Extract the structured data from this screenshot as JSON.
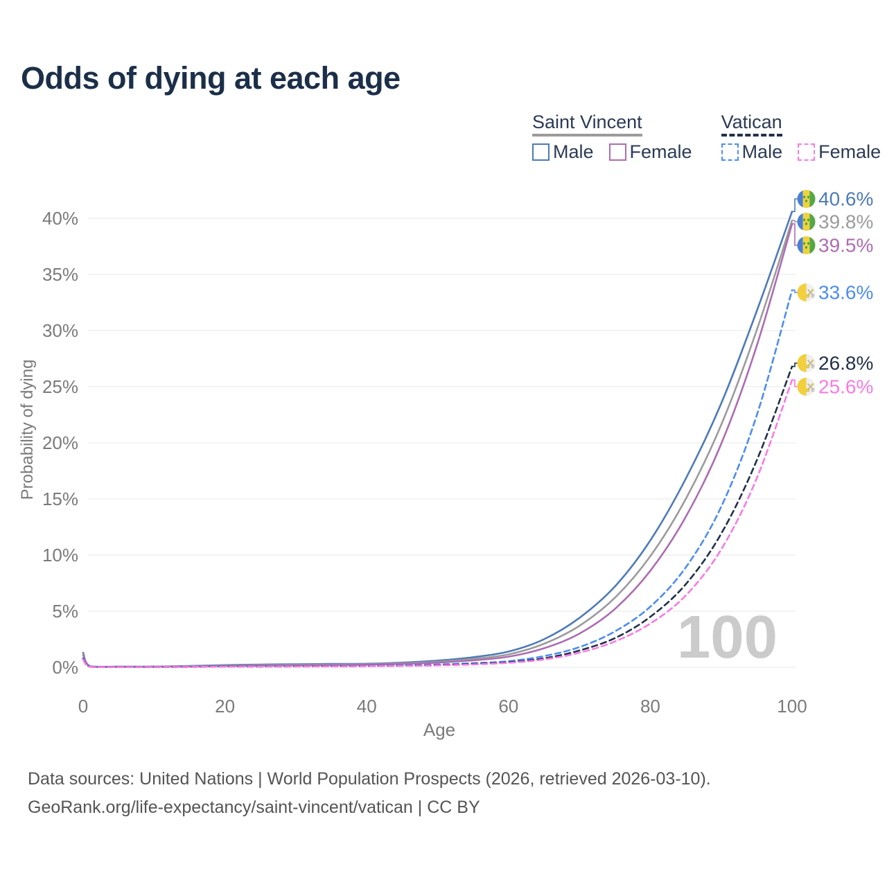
{
  "title": "Odds of dying at each age",
  "watermark_age": "100",
  "legend": {
    "groups": [
      {
        "key": "saint-vincent",
        "label": "Saint Vincent",
        "items": [
          {
            "key": "male",
            "label": "Male"
          },
          {
            "key": "female",
            "label": "Female"
          }
        ]
      },
      {
        "key": "vatican",
        "label": "Vatican",
        "items": [
          {
            "key": "male",
            "label": "Male"
          },
          {
            "key": "female",
            "label": "Female"
          }
        ]
      }
    ]
  },
  "footer": {
    "line1": "Data sources: United Nations | World Population Prospects (2026, retrieved 2026-03-10).",
    "line2": "GeoRank.org/life-expectancy/saint-vincent/vatican | CC BY"
  },
  "colors": {
    "title_text": "#1c2f49",
    "legend_text": "#2b3a55",
    "axis_text": "#7a7a7a",
    "gridline": "#ececec",
    "watermark": "#cbcbcb",
    "footer_text": "#545454",
    "sv_flag_blue": "#4a7fd4",
    "sv_flag_yellow": "#f0d23d",
    "sv_flag_green": "#55a744",
    "sv_flag_diamond": "#3f9e3f",
    "vat_flag_yellow": "#f2cf3c",
    "vat_flag_white": "#efefec",
    "vat_key_gold": "#d8b93a",
    "vat_key_silver": "#b9b9b9"
  },
  "chart_data": {
    "type": "line",
    "title": "Odds of dying at each age",
    "xlabel": "Age",
    "ylabel": "Probability of dying",
    "xlim": [
      0,
      100
    ],
    "ylim_percent": [
      0,
      42
    ],
    "grid": "horizontal",
    "x_ticks": [
      0,
      20,
      40,
      60,
      80,
      100
    ],
    "y_tick_labels": [
      "0%",
      "5%",
      "10%",
      "15%",
      "20%",
      "25%",
      "30%",
      "35%",
      "40%"
    ],
    "y_tick_values": [
      0,
      5,
      10,
      15,
      20,
      25,
      30,
      35,
      40
    ],
    "legend_position": "top-right",
    "age_cursor_overlay": "100",
    "x": [
      0,
      1,
      5,
      10,
      15,
      20,
      25,
      30,
      35,
      40,
      45,
      50,
      55,
      60,
      65,
      70,
      75,
      80,
      85,
      90,
      95,
      100
    ],
    "series": [
      {
        "key": "saint-vincent-male",
        "name": "Saint Vincent — Male",
        "country": "Saint Vincent",
        "sex": "Male",
        "style": "solid",
        "color": "#4d7ab8",
        "end_label": "40.6%",
        "end_value": 40.6,
        "flag": "saint-vincent",
        "values": [
          1.3,
          0.1,
          0.06,
          0.07,
          0.12,
          0.2,
          0.25,
          0.28,
          0.3,
          0.32,
          0.42,
          0.6,
          0.9,
          1.4,
          2.5,
          4.4,
          7.2,
          11.3,
          16.8,
          23.5,
          31.7,
          40.6
        ]
      },
      {
        "key": "saint-vincent-total",
        "name": "Saint Vincent — Both sexes",
        "country": "Saint Vincent",
        "sex": "Both",
        "style": "solid",
        "color": "#9b9b9b",
        "end_label": "39.8%",
        "end_value": 39.8,
        "flag": "saint-vincent",
        "values": [
          1.2,
          0.09,
          0.05,
          0.06,
          0.1,
          0.16,
          0.2,
          0.23,
          0.25,
          0.28,
          0.36,
          0.5,
          0.75,
          1.15,
          2.1,
          3.7,
          6.2,
          9.9,
          15.0,
          21.6,
          30.0,
          39.8
        ]
      },
      {
        "key": "saint-vincent-female",
        "name": "Saint Vincent — Female",
        "country": "Saint Vincent",
        "sex": "Female",
        "style": "solid",
        "color": "#ad6cb2",
        "end_label": "39.5%",
        "end_value": 39.5,
        "flag": "saint-vincent",
        "values": [
          1.1,
          0.08,
          0.05,
          0.05,
          0.08,
          0.12,
          0.15,
          0.18,
          0.2,
          0.23,
          0.3,
          0.42,
          0.62,
          0.95,
          1.7,
          3.0,
          5.2,
          8.6,
          13.4,
          19.9,
          28.6,
          39.5
        ]
      },
      {
        "key": "vatican-male",
        "name": "Vatican — Male",
        "country": "Vatican",
        "sex": "Male",
        "style": "dashed",
        "color": "#4b8cf5",
        "end_label": "33.6%",
        "end_value": 33.6,
        "flag": "vatican",
        "values": [
          0.8,
          0.06,
          0.03,
          0.03,
          0.05,
          0.08,
          0.09,
          0.1,
          0.11,
          0.13,
          0.17,
          0.25,
          0.37,
          0.55,
          1.0,
          1.8,
          3.2,
          5.4,
          8.9,
          14.3,
          22.4,
          33.6
        ]
      },
      {
        "key": "vatican-total",
        "name": "Vatican — Both sexes",
        "country": "Vatican",
        "sex": "Both",
        "style": "dashed",
        "color": "#233049",
        "end_label": "26.8%",
        "end_value": 26.8,
        "flag": "vatican",
        "values": [
          0.75,
          0.05,
          0.03,
          0.03,
          0.04,
          0.06,
          0.07,
          0.08,
          0.09,
          0.11,
          0.14,
          0.2,
          0.3,
          0.45,
          0.8,
          1.5,
          2.6,
          4.5,
          7.4,
          11.9,
          18.4,
          26.8
        ]
      },
      {
        "key": "vatican-female",
        "name": "Vatican — Female",
        "country": "Vatican",
        "sex": "Female",
        "style": "dashed",
        "color": "#f87ae5",
        "end_label": "25.6%",
        "end_value": 25.6,
        "flag": "vatican",
        "values": [
          0.7,
          0.05,
          0.02,
          0.03,
          0.04,
          0.05,
          0.06,
          0.07,
          0.08,
          0.1,
          0.13,
          0.17,
          0.26,
          0.4,
          0.7,
          1.3,
          2.3,
          3.9,
          6.4,
          10.5,
          16.8,
          25.6
        ]
      }
    ]
  }
}
